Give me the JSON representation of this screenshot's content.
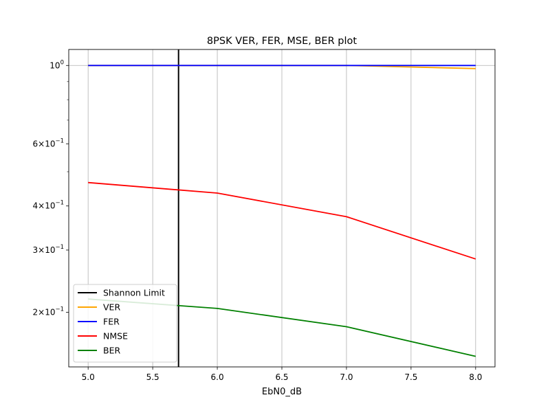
{
  "chart_data": {
    "type": "line",
    "title": "8PSK VER, FER, MSE, BER plot",
    "xlabel": "EbN0_dB",
    "ylabel": "",
    "yscale": "log",
    "xlim": [
      4.85,
      8.15
    ],
    "ylim": [
      0.14,
      1.11
    ],
    "grid": "vertical",
    "legend_position": "lower-left",
    "x_ticks": [
      {
        "value": 5.0,
        "label": "5.0"
      },
      {
        "value": 5.5,
        "label": "5.5"
      },
      {
        "value": 6.0,
        "label": "6.0"
      },
      {
        "value": 6.5,
        "label": "6.5"
      },
      {
        "value": 7.0,
        "label": "7.0"
      },
      {
        "value": 7.5,
        "label": "7.5"
      },
      {
        "value": 8.0,
        "label": "8.0"
      }
    ],
    "y_ticks": [
      {
        "value": 1.0,
        "mantissa": "",
        "exponent": "0"
      },
      {
        "value": 0.6,
        "mantissa": "6",
        "exponent": "−1"
      },
      {
        "value": 0.4,
        "mantissa": "4",
        "exponent": "−1"
      },
      {
        "value": 0.3,
        "mantissa": "3",
        "exponent": "−1"
      },
      {
        "value": 0.2,
        "mantissa": "2",
        "exponent": "−1"
      }
    ],
    "vertical_lines": [
      {
        "name": "Shannon Limit",
        "x": 5.7,
        "color": "#000000"
      }
    ],
    "x": [
      5.0,
      6.0,
      7.0,
      8.0
    ],
    "series": [
      {
        "name": "VER",
        "color": "#ffa500",
        "values": [
          1.0,
          1.0,
          1.0,
          0.98
        ]
      },
      {
        "name": "FER",
        "color": "#0000ff",
        "values": [
          1.0,
          1.0,
          1.0,
          1.0
        ]
      },
      {
        "name": "NMSE",
        "color": "#ff0000",
        "values": [
          0.466,
          0.435,
          0.373,
          0.283
        ]
      },
      {
        "name": "BER",
        "color": "#008000",
        "values": [
          0.218,
          0.205,
          0.182,
          0.15
        ]
      }
    ],
    "legend": [
      "Shannon Limit",
      "VER",
      "FER",
      "NMSE",
      "BER"
    ]
  }
}
